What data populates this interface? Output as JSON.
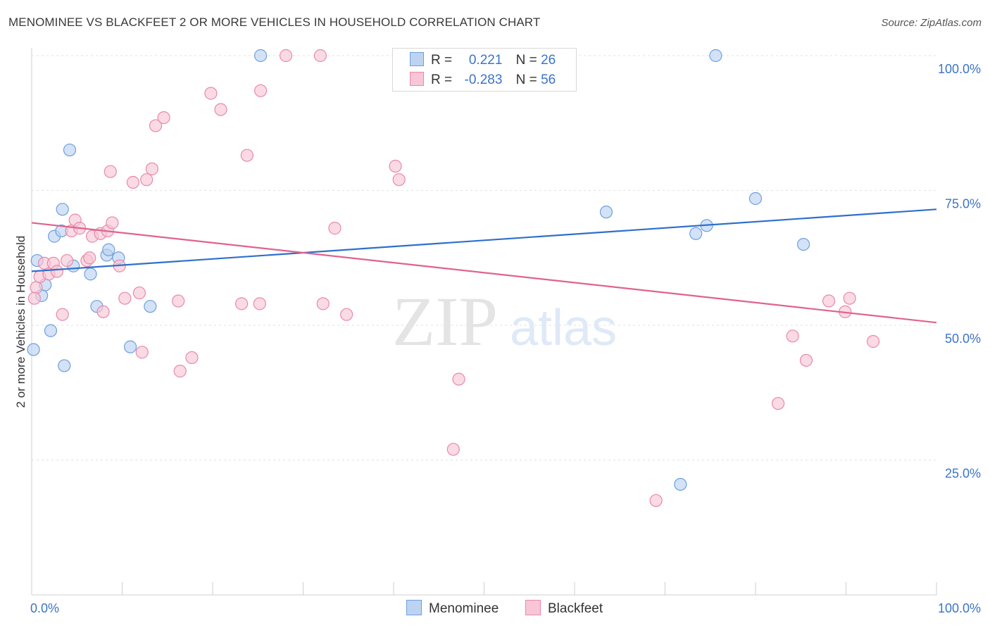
{
  "title": "MENOMINEE VS BLACKFEET 2 OR MORE VEHICLES IN HOUSEHOLD CORRELATION CHART",
  "source": "Source: ZipAtlas.com",
  "watermark": {
    "zip": "ZIP",
    "atlas": "atlas"
  },
  "legend": {
    "r_label": "R =",
    "n_label": "N =",
    "menominee": {
      "r": "0.221",
      "n": "26"
    },
    "blackfeet": {
      "r": "-0.283",
      "n": "56"
    }
  },
  "chart_data": {
    "type": "scatter",
    "xlabel": "",
    "ylabel": "2 or more Vehicles in Household",
    "xlim": [
      0,
      100
    ],
    "ylim": [
      0,
      100
    ],
    "x_tick_labels": [
      "0.0%",
      "100.0%"
    ],
    "y_ticks": [
      25,
      50,
      75,
      100
    ],
    "y_tick_labels": [
      "25.0%",
      "50.0%",
      "75.0%",
      "100.0%"
    ],
    "grid": true,
    "legend_position": "top-center",
    "series": [
      {
        "name": "Menominee",
        "color": "#6f9fdc",
        "fill": "#bcd3f2",
        "trend": {
          "x": [
            0,
            100
          ],
          "y": [
            60.0,
            71.5
          ]
        },
        "points": [
          [
            0.2,
            45.5
          ],
          [
            0.6,
            62.0
          ],
          [
            1.1,
            55.5
          ],
          [
            1.5,
            57.5
          ],
          [
            2.1,
            49.0
          ],
          [
            2.5,
            66.5
          ],
          [
            3.3,
            67.5
          ],
          [
            3.4,
            71.5
          ],
          [
            3.6,
            42.5
          ],
          [
            4.2,
            82.5
          ],
          [
            4.6,
            61.0
          ],
          [
            6.5,
            59.5
          ],
          [
            7.2,
            53.5
          ],
          [
            8.3,
            63.0
          ],
          [
            8.5,
            64.0
          ],
          [
            9.6,
            62.5
          ],
          [
            10.9,
            46.0
          ],
          [
            13.1,
            53.5
          ],
          [
            25.3,
            100
          ],
          [
            75.6,
            100
          ],
          [
            63.5,
            71.0
          ],
          [
            73.4,
            67.0
          ],
          [
            74.6,
            68.5
          ],
          [
            80.0,
            73.5
          ],
          [
            85.3,
            65.0
          ],
          [
            71.7,
            20.5
          ]
        ]
      },
      {
        "name": "Blackfeet",
        "color": "#e88aa8",
        "fill": "#f8c6d6",
        "trend": {
          "x": [
            0,
            100
          ],
          "y": [
            69.0,
            50.5
          ]
        },
        "points": [
          [
            0.5,
            57.0
          ],
          [
            0.9,
            59.0
          ],
          [
            1.4,
            61.5
          ],
          [
            1.9,
            59.5
          ],
          [
            2.4,
            61.5
          ],
          [
            2.8,
            60.0
          ],
          [
            3.4,
            52.0
          ],
          [
            3.9,
            62.0
          ],
          [
            4.4,
            67.5
          ],
          [
            4.8,
            69.5
          ],
          [
            5.3,
            68.0
          ],
          [
            6.1,
            62.0
          ],
          [
            6.4,
            62.5
          ],
          [
            6.7,
            66.5
          ],
          [
            7.6,
            67.0
          ],
          [
            7.9,
            52.5
          ],
          [
            8.4,
            67.5
          ],
          [
            8.9,
            69.0
          ],
          [
            8.7,
            78.5
          ],
          [
            9.7,
            61.0
          ],
          [
            10.3,
            55.0
          ],
          [
            11.2,
            76.5
          ],
          [
            11.9,
            56.0
          ],
          [
            12.2,
            45.0
          ],
          [
            12.7,
            77.0
          ],
          [
            13.3,
            79.0
          ],
          [
            13.7,
            87.0
          ],
          [
            14.6,
            88.5
          ],
          [
            16.2,
            54.5
          ],
          [
            16.4,
            41.5
          ],
          [
            17.7,
            44.0
          ],
          [
            19.8,
            93.0
          ],
          [
            20.9,
            90.0
          ],
          [
            23.2,
            54.0
          ],
          [
            23.8,
            81.5
          ],
          [
            25.2,
            54.0
          ],
          [
            25.3,
            93.5
          ],
          [
            28.1,
            100
          ],
          [
            31.9,
            100
          ],
          [
            32.2,
            54.0
          ],
          [
            33.5,
            68.0
          ],
          [
            34.8,
            52.0
          ],
          [
            40.2,
            79.5
          ],
          [
            40.6,
            77.0
          ],
          [
            46.6,
            100
          ],
          [
            47.2,
            40.0
          ],
          [
            46.6,
            27.0
          ],
          [
            69.0,
            17.5
          ],
          [
            82.5,
            35.5
          ],
          [
            84.1,
            48.0
          ],
          [
            85.6,
            43.5
          ],
          [
            88.1,
            54.5
          ],
          [
            89.9,
            52.5
          ],
          [
            90.4,
            55.0
          ],
          [
            93.0,
            47.0
          ],
          [
            0.3,
            55.0
          ]
        ]
      }
    ]
  }
}
